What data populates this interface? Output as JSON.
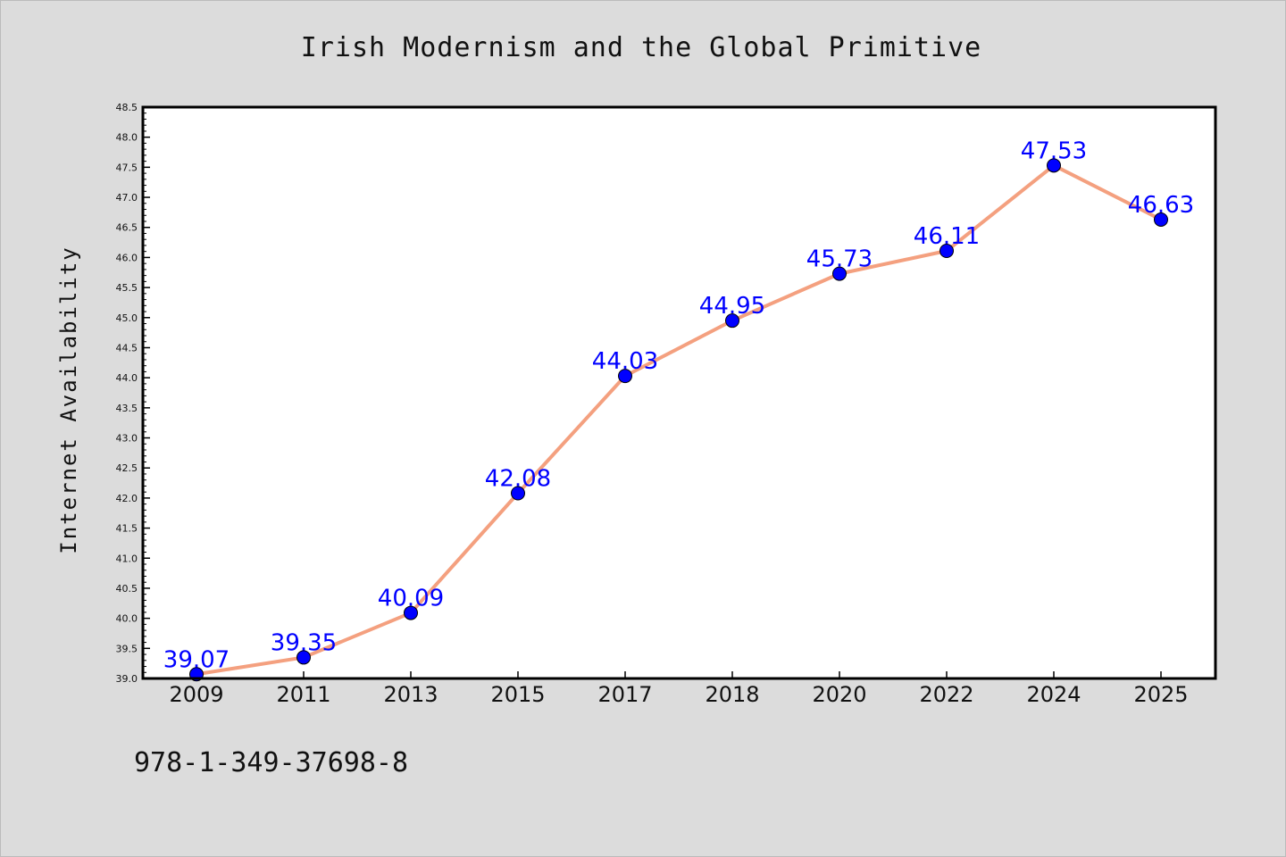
{
  "chart_data": {
    "type": "line",
    "title": "Irish Modernism and the Global Primitive",
    "xlabel": "",
    "ylabel": "Internet Availability",
    "categories": [
      "2009",
      "2011",
      "2013",
      "2015",
      "2017",
      "2018",
      "2020",
      "2022",
      "2024",
      "2025"
    ],
    "series": [
      {
        "values": [
          39.07,
          39.35,
          40.09,
          42.08,
          44.03,
          44.95,
          45.73,
          46.11,
          47.53,
          46.63
        ],
        "labels": [
          "39.07",
          "39.35",
          "40.09",
          "42.08",
          "44.03",
          "44.95",
          "45.73",
          "46.11",
          "47.53",
          "46.63"
        ],
        "line_color": "#f4a07f",
        "marker_color": "#0000ff"
      }
    ],
    "ylim": [
      39.0,
      48.5
    ],
    "yticks": [
      "39.0",
      "39.5",
      "40.0",
      "40.5",
      "41.0",
      "41.5",
      "42.0",
      "42.5",
      "43.0",
      "43.5",
      "44.0",
      "44.5",
      "45.0",
      "45.5",
      "46.0",
      "46.5",
      "47.0",
      "47.5",
      "48.0",
      "48.5"
    ],
    "grid": false,
    "legend": "none",
    "background": "#dcdcdc",
    "plot_background": "#ffffff"
  },
  "footer": {
    "isbn": "978-1-349-37698-8"
  }
}
